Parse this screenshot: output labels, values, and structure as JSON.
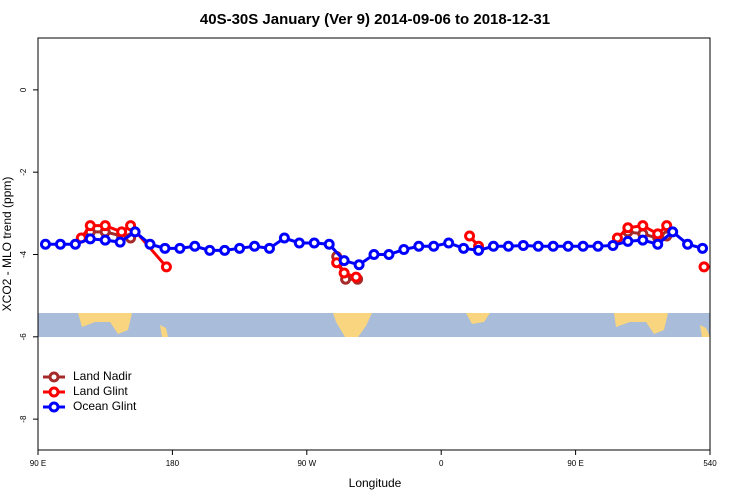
{
  "chart_data": {
    "type": "line",
    "title": "40S-30S January (Ver 9)   2014-09-06 to 2018-12-31",
    "x_label": "Longitude",
    "y_label": "XCO2 - MLO trend (ppm)",
    "xlim": [
      90,
      540
    ],
    "xticks": [
      {
        "value": 90,
        "label": "90 E"
      },
      180,
      {
        "value": 270,
        "label": "90 W"
      },
      {
        "value": 360,
        "label": "0"
      },
      {
        "value": 450,
        "label": "90 E"
      },
      540
    ],
    "ylim": [
      -8.75,
      1.26
    ],
    "yticks": [
      0,
      -2,
      -4,
      -6,
      -8
    ],
    "legend": "bottom-left",
    "series": [
      {
        "name": "Land Nadir",
        "color": "#a52a2a",
        "x": [
          125,
          135,
          146,
          152,
          null,
          290,
          296,
          304,
          null,
          485,
          495,
          505,
          511
        ],
        "values": [
          -3.45,
          -3.45,
          -3.55,
          -3.6,
          null,
          -4.05,
          -4.6,
          -4.6,
          null,
          -3.45,
          -3.5,
          -3.6,
          -3.55
        ]
      },
      {
        "name": "Land Glint",
        "color": "#ff0000",
        "x": [
          119,
          125,
          135,
          146,
          152,
          176,
          null,
          290,
          295,
          303,
          null,
          379,
          385,
          null,
          478,
          485,
          495,
          505,
          511,
          null,
          536
        ],
        "values": [
          -3.6,
          -3.3,
          -3.3,
          -3.45,
          -3.3,
          -4.3,
          null,
          -4.2,
          -4.45,
          -4.55,
          null,
          -3.55,
          -3.8,
          null,
          -3.6,
          -3.35,
          -3.3,
          -3.5,
          -3.3,
          null,
          -4.3
        ]
      },
      {
        "name": "Ocean Glint",
        "color": "#0000ff",
        "x": [
          95,
          105,
          115,
          125,
          135,
          145,
          155,
          165,
          175,
          185,
          195,
          205,
          215,
          225,
          235,
          245,
          255,
          265,
          275,
          285,
          295,
          305,
          315,
          325,
          335,
          345,
          355,
          365,
          375,
          385,
          395,
          405,
          415,
          425,
          435,
          445,
          455,
          465,
          475,
          485,
          495,
          505,
          515,
          525,
          535
        ],
        "values": [
          -3.75,
          -3.75,
          -3.75,
          -3.62,
          -3.65,
          -3.7,
          -3.45,
          -3.75,
          -3.85,
          -3.85,
          -3.8,
          -3.9,
          -3.9,
          -3.85,
          -3.8,
          -3.85,
          -3.6,
          -3.72,
          -3.72,
          -3.75,
          -4.15,
          -4.25,
          -4.0,
          -4.0,
          -3.88,
          -3.8,
          -3.8,
          -3.72,
          -3.85,
          -3.9,
          -3.8,
          -3.8,
          -3.78,
          -3.8,
          -3.8,
          -3.8,
          -3.8,
          -3.8,
          -3.78,
          -3.68,
          -3.65,
          -3.75,
          -3.45,
          -3.75,
          -3.85
        ]
      }
    ]
  }
}
